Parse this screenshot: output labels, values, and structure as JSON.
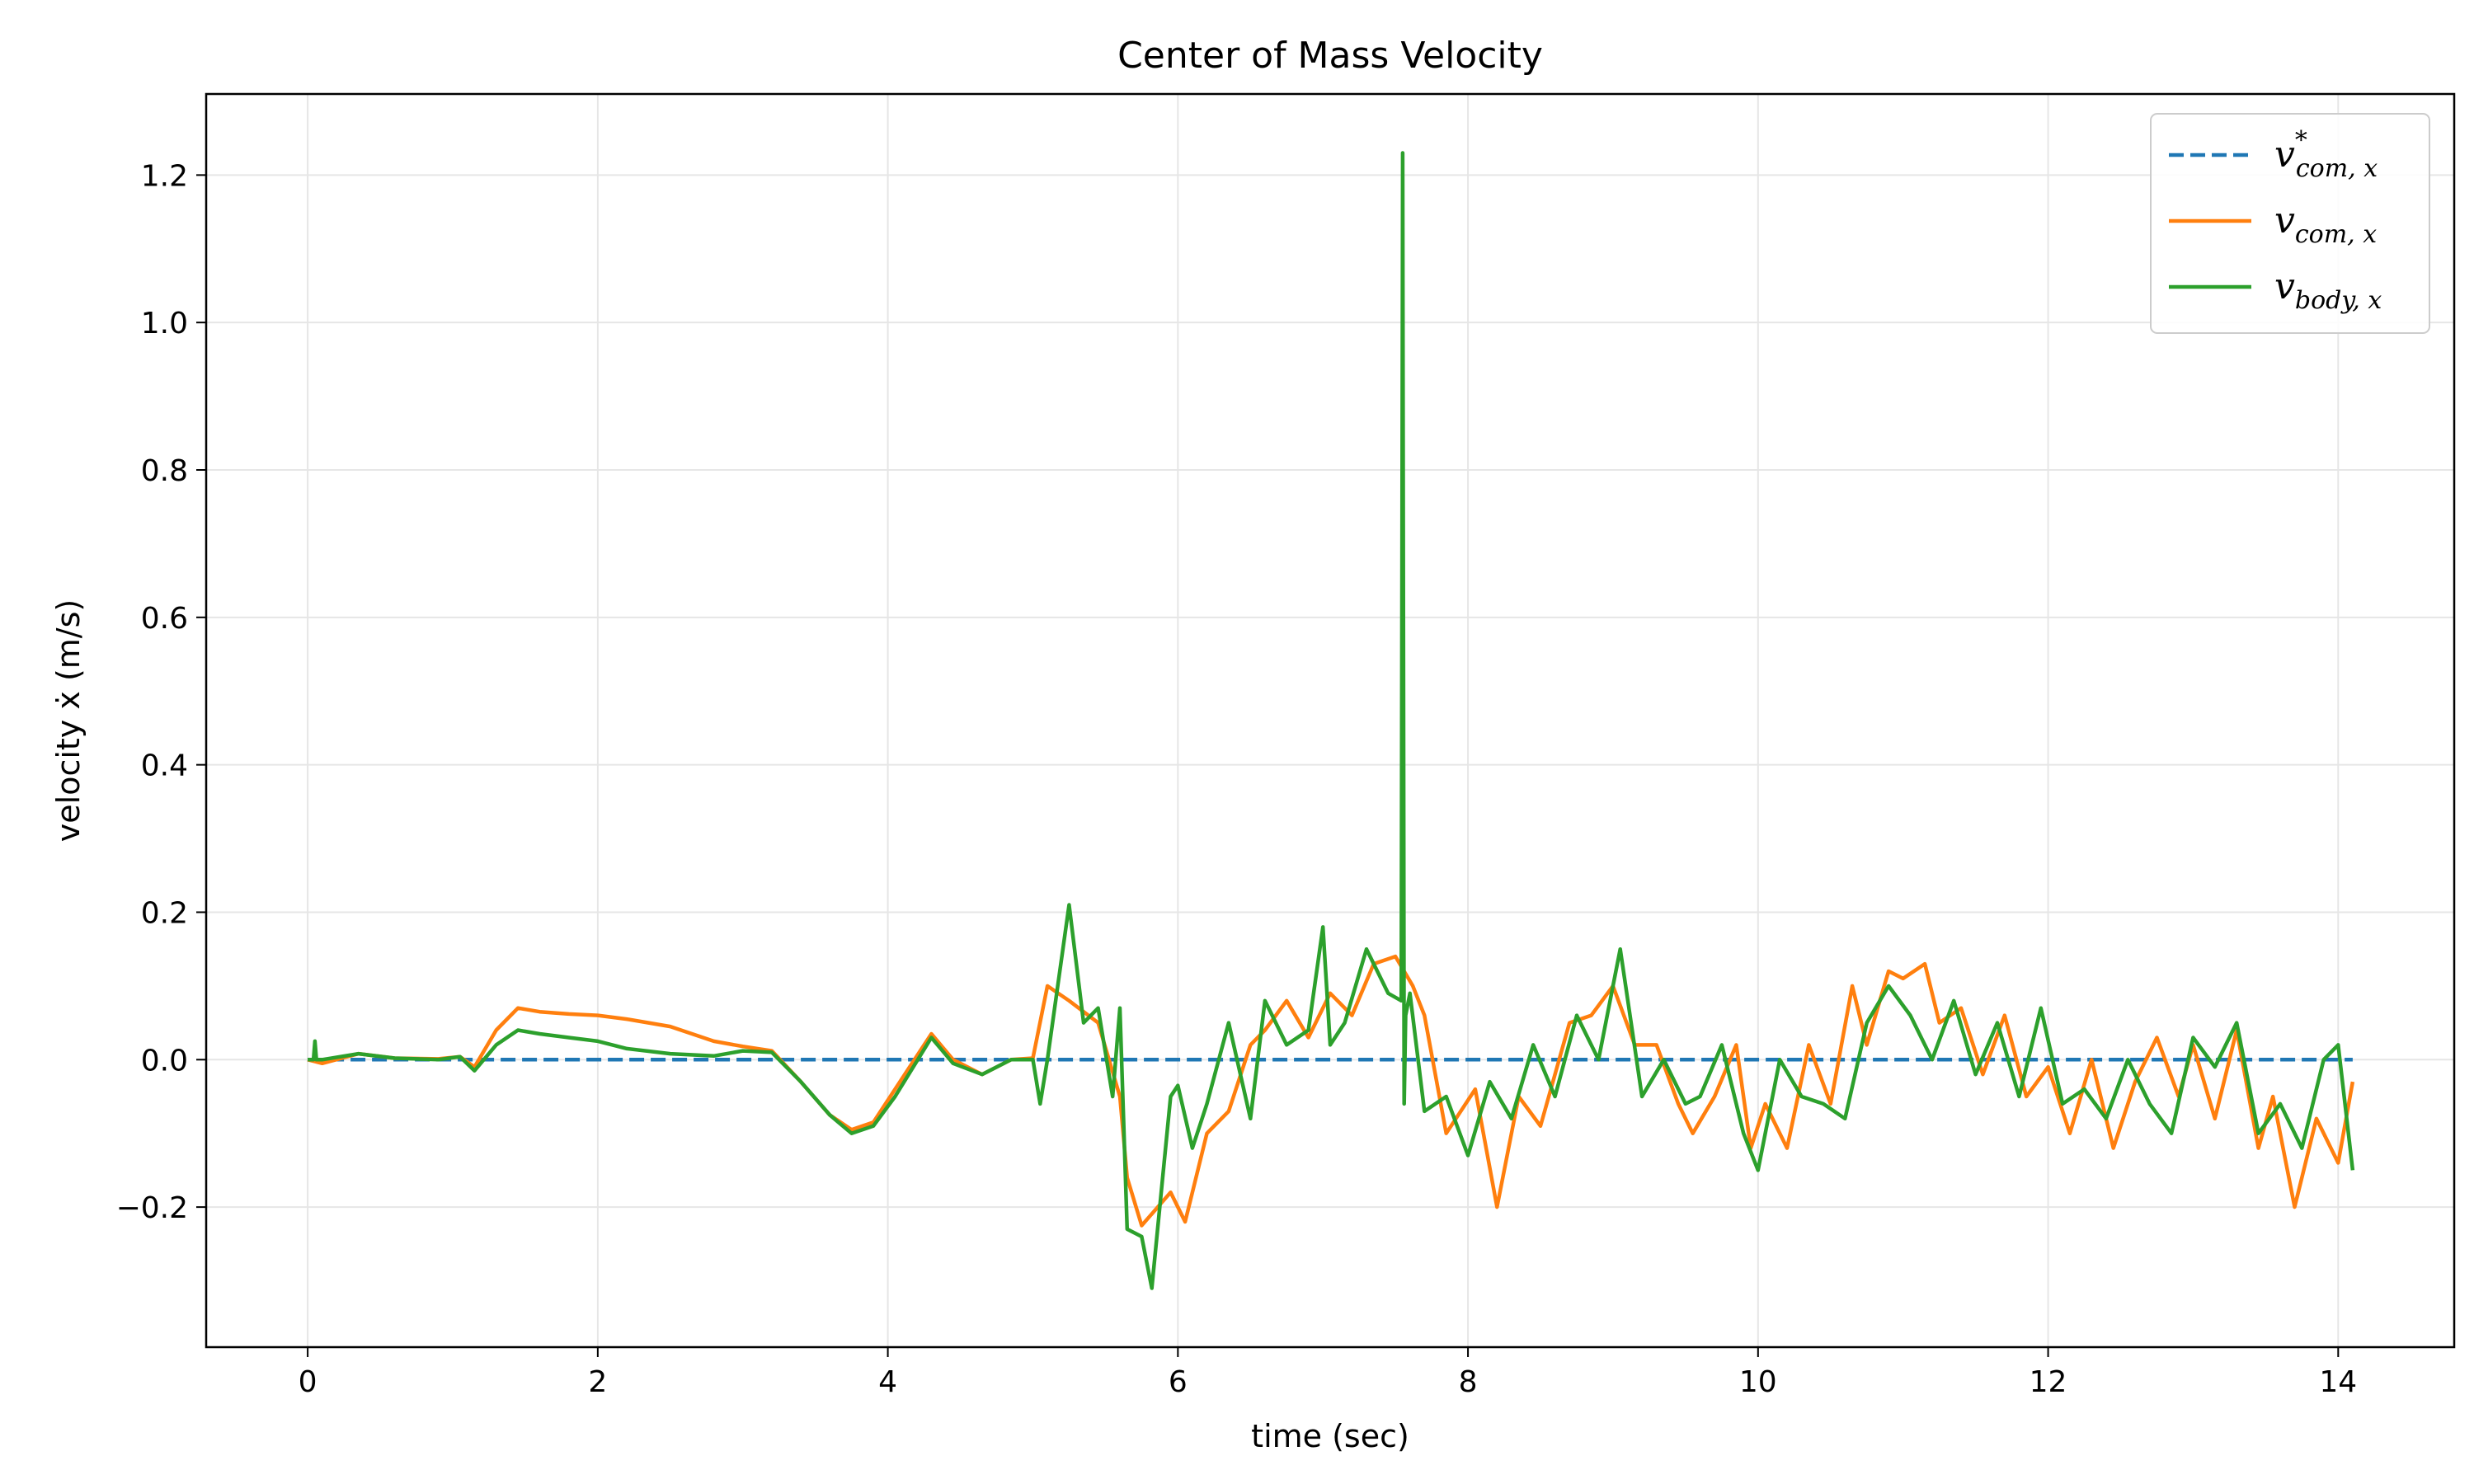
{
  "chart_data": {
    "type": "line",
    "title": "Center of Mass Velocity",
    "xlabel": "time (sec)",
    "ylabel": "velocity ẋ (m/s)",
    "xlim": [
      -0.7,
      14.8
    ],
    "ylim": [
      -0.39,
      1.31
    ],
    "xticks": [
      0,
      2,
      4,
      6,
      8,
      10,
      12,
      14
    ],
    "xtick_labels": [
      "0",
      "2",
      "4",
      "6",
      "8",
      "10",
      "12",
      "14"
    ],
    "yticks": [
      -0.2,
      0.0,
      0.2,
      0.4,
      0.6,
      0.8,
      1.0,
      1.2
    ],
    "ytick_labels": [
      "−0.2",
      "0.0",
      "0.2",
      "0.4",
      "0.6",
      "0.8",
      "1.0",
      "1.2"
    ],
    "grid": true,
    "legend_position": "top-right",
    "series": [
      {
        "name": "v*com,x",
        "legend": {
          "base": "v",
          "sup": "*",
          "sub": "com, x"
        },
        "color": "#1f77b4",
        "style": "dashed",
        "x": [
          0,
          14.1
        ],
        "y": [
          0,
          0
        ]
      },
      {
        "name": "vcom,x",
        "legend": {
          "base": "v",
          "sup": "",
          "sub": "com, x"
        },
        "color": "#ff7f0e",
        "style": "solid",
        "x": [
          0,
          0.1,
          0.35,
          0.6,
          0.9,
          1.05,
          1.15,
          1.3,
          1.45,
          1.6,
          1.8,
          2.0,
          2.2,
          2.5,
          2.8,
          3.0,
          3.2,
          3.4,
          3.6,
          3.75,
          3.9,
          4.05,
          4.3,
          4.45,
          4.65,
          4.85,
          5.0,
          5.1,
          5.25,
          5.45,
          5.6,
          5.65,
          5.75,
          5.95,
          6.05,
          6.2,
          6.35,
          6.5,
          6.6,
          6.75,
          6.9,
          7.05,
          7.2,
          7.35,
          7.5,
          7.62,
          7.7,
          7.85,
          8.05,
          8.2,
          8.35,
          8.5,
          8.7,
          8.85,
          9.0,
          9.15,
          9.3,
          9.45,
          9.55,
          9.7,
          9.85,
          9.95,
          10.05,
          10.2,
          10.35,
          10.5,
          10.65,
          10.75,
          10.9,
          11.0,
          11.15,
          11.25,
          11.4,
          11.55,
          11.7,
          11.85,
          12.0,
          12.15,
          12.3,
          12.45,
          12.6,
          12.75,
          12.9,
          13.0,
          13.15,
          13.3,
          13.45,
          13.55,
          13.7,
          13.85,
          14.0,
          14.1
        ],
        "y": [
          0,
          -0.005,
          0.008,
          0.002,
          0.001,
          0.004,
          -0.01,
          0.04,
          0.07,
          0.065,
          0.062,
          0.06,
          0.055,
          0.045,
          0.025,
          0.018,
          0.012,
          -0.03,
          -0.075,
          -0.095,
          -0.085,
          -0.04,
          0.035,
          0.0,
          -0.02,
          0.0,
          0.002,
          0.1,
          0.08,
          0.05,
          -0.05,
          -0.16,
          -0.225,
          -0.18,
          -0.22,
          -0.1,
          -0.07,
          0.02,
          0.04,
          0.08,
          0.03,
          0.09,
          0.06,
          0.13,
          0.14,
          0.1,
          0.06,
          -0.1,
          -0.04,
          -0.2,
          -0.05,
          -0.09,
          0.05,
          0.06,
          0.1,
          0.02,
          0.02,
          -0.06,
          -0.1,
          -0.05,
          0.02,
          -0.12,
          -0.06,
          -0.12,
          0.02,
          -0.06,
          0.1,
          0.02,
          0.12,
          0.11,
          0.13,
          0.05,
          0.07,
          -0.02,
          0.06,
          -0.05,
          -0.01,
          -0.1,
          0.0,
          -0.12,
          -0.03,
          0.03,
          -0.05,
          0.02,
          -0.08,
          0.04,
          -0.12,
          -0.05,
          -0.2,
          -0.08,
          -0.14,
          -0.03
        ]
      },
      {
        "name": "vbody,x",
        "legend": {
          "base": "v",
          "sup": "",
          "sub": "body, x"
        },
        "color": "#2ca02c",
        "style": "solid",
        "x": [
          0,
          0.04,
          0.05,
          0.06,
          0.1,
          0.35,
          0.6,
          0.9,
          1.05,
          1.15,
          1.3,
          1.45,
          1.6,
          1.8,
          2.0,
          2.2,
          2.5,
          2.8,
          3.0,
          3.2,
          3.4,
          3.6,
          3.75,
          3.9,
          4.05,
          4.3,
          4.45,
          4.65,
          4.85,
          5.0,
          5.05,
          5.1,
          5.25,
          5.35,
          5.45,
          5.55,
          5.6,
          5.65,
          5.75,
          5.82,
          5.95,
          6.0,
          6.1,
          6.2,
          6.35,
          6.5,
          6.6,
          6.75,
          6.9,
          7.0,
          7.05,
          7.15,
          7.3,
          7.45,
          7.54,
          7.55,
          7.56,
          7.57,
          7.6,
          7.7,
          7.85,
          8.0,
          8.15,
          8.3,
          8.45,
          8.6,
          8.75,
          8.9,
          9.05,
          9.2,
          9.35,
          9.5,
          9.6,
          9.75,
          9.9,
          10.0,
          10.15,
          10.3,
          10.45,
          10.6,
          10.75,
          10.9,
          11.05,
          11.2,
          11.35,
          11.5,
          11.65,
          11.8,
          11.95,
          12.1,
          12.25,
          12.4,
          12.55,
          12.7,
          12.85,
          13.0,
          13.15,
          13.3,
          13.45,
          13.6,
          13.75,
          13.9,
          14.0,
          14.1
        ],
        "y": [
          0,
          0,
          0.025,
          0.0,
          0.0,
          0.008,
          0.002,
          0.0,
          0.004,
          -0.015,
          0.02,
          0.04,
          0.035,
          0.03,
          0.025,
          0.015,
          0.008,
          0.005,
          0.012,
          0.01,
          -0.03,
          -0.075,
          -0.1,
          -0.09,
          -0.05,
          0.03,
          -0.005,
          -0.02,
          0.0,
          0.0,
          -0.06,
          0.0,
          0.21,
          0.05,
          0.07,
          -0.05,
          0.07,
          -0.23,
          -0.24,
          -0.31,
          -0.05,
          -0.035,
          -0.12,
          -0.06,
          0.05,
          -0.08,
          0.08,
          0.02,
          0.04,
          0.18,
          0.02,
          0.05,
          0.15,
          0.09,
          0.08,
          1.23,
          -0.06,
          0.06,
          0.09,
          -0.07,
          -0.05,
          -0.13,
          -0.03,
          -0.08,
          0.02,
          -0.05,
          0.06,
          0.0,
          0.15,
          -0.05,
          0.0,
          -0.06,
          -0.05,
          0.02,
          -0.1,
          -0.15,
          0.0,
          -0.05,
          -0.06,
          -0.08,
          0.05,
          0.1,
          0.06,
          0.0,
          0.08,
          -0.02,
          0.05,
          -0.05,
          0.07,
          -0.06,
          -0.04,
          -0.08,
          0.0,
          -0.06,
          -0.1,
          0.03,
          -0.01,
          0.05,
          -0.1,
          -0.06,
          -0.12,
          0.0,
          0.02,
          -0.15
        ]
      }
    ]
  }
}
